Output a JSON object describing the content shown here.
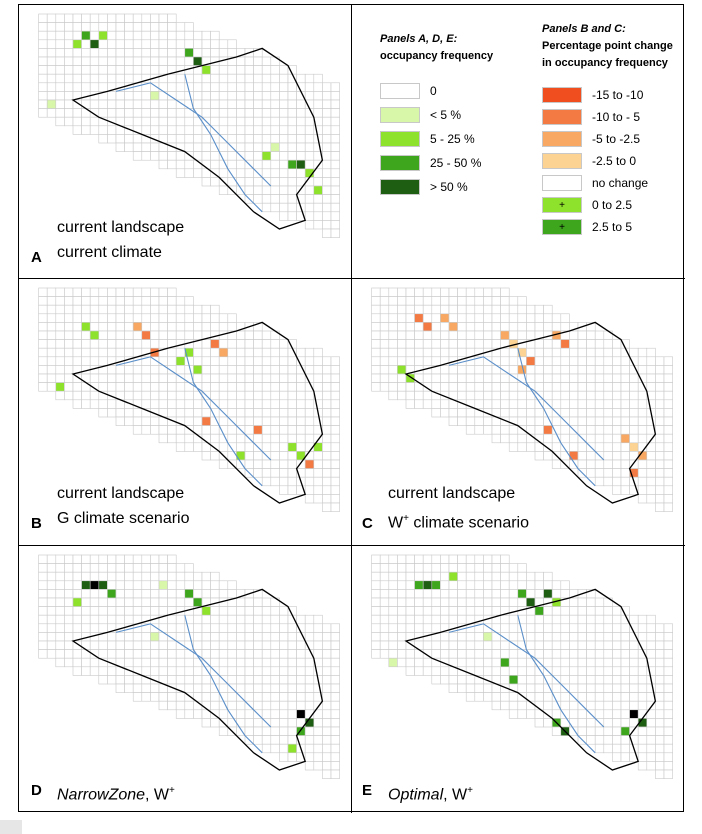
{
  "panels": {
    "A": {
      "letter": "A",
      "line1": "current landscape",
      "line2": "current climate"
    },
    "B": {
      "letter": "B",
      "line1": "current landscape",
      "line2": "G climate scenario"
    },
    "C": {
      "letter": "C",
      "line1": "current landscape",
      "line2": "W",
      "line2_sup": "+",
      "line2_rest": " climate scenario"
    },
    "D": {
      "letter": "D",
      "name": "NarrowZone",
      "sep": ", W",
      "sup": "+"
    },
    "E": {
      "letter": "E",
      "name": "Optimal",
      "sep": ", W",
      "sup": "+"
    }
  },
  "legend_occupancy": {
    "title_line1": "Panels A, D, E:",
    "title_line2": "occupancy frequency",
    "items": [
      {
        "label": "0",
        "color": "#ffffff"
      },
      {
        "label": "< 5 %",
        "color": "#d9f7a8"
      },
      {
        "label": "5 - 25 %",
        "color": "#8fe22c"
      },
      {
        "label": "25 - 50 %",
        "color": "#3ea61d"
      },
      {
        "label": "> 50 %",
        "color": "#1e5e12"
      }
    ]
  },
  "legend_change": {
    "title_line1": "Panels B and C:",
    "title_line2": "Percentage point change",
    "title_line3": "in occupancy frequency",
    "items": [
      {
        "label": "-15 to -10",
        "color": "#f04e1e",
        "mark": ""
      },
      {
        "label": "-10 to - 5",
        "color": "#f47a44",
        "mark": ""
      },
      {
        "label": "-5 to -2.5",
        "color": "#f8a862",
        "mark": ""
      },
      {
        "label": "-2.5 to 0",
        "color": "#fcd393",
        "mark": ""
      },
      {
        "label": "no change",
        "color": "#ffffff",
        "mark": ""
      },
      {
        "label": "0 to 2.5",
        "color": "#8fe22c",
        "mark": "+"
      },
      {
        "label": "2.5 to 5",
        "color": "#3ea61d",
        "mark": "+"
      }
    ]
  },
  "colors": {
    "grid": "#c9c9c9",
    "outline": "#000000",
    "river": "#5b8fc9"
  }
}
